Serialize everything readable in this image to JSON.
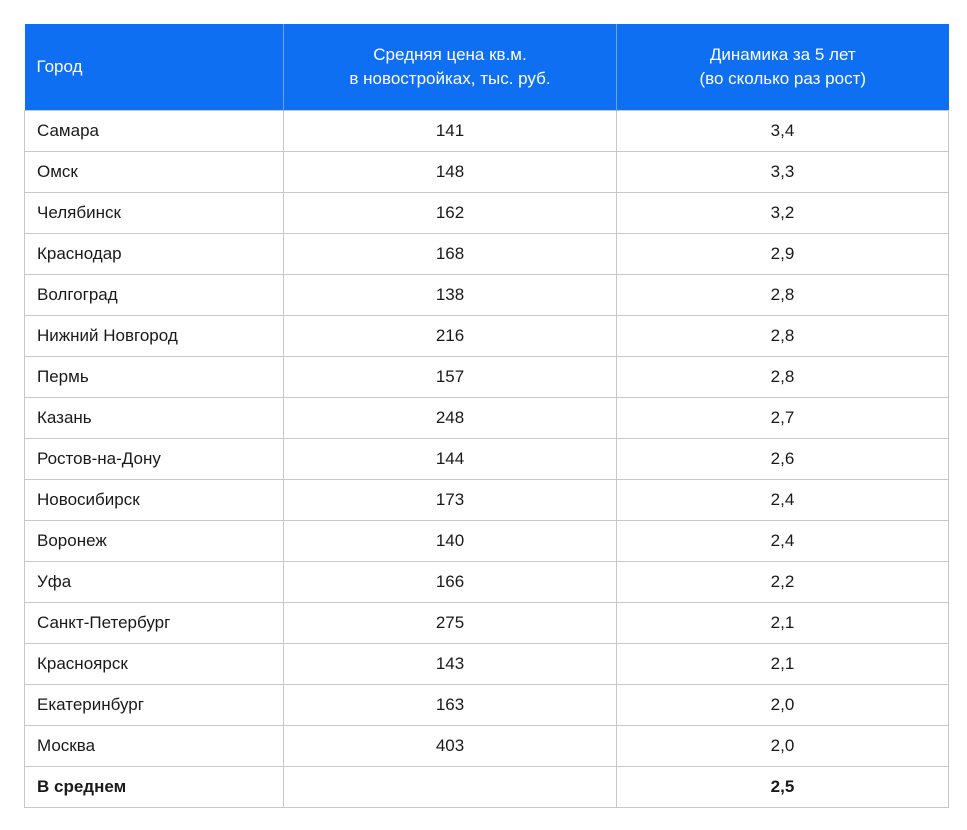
{
  "table": {
    "header": [
      [
        "Город"
      ],
      [
        "Средняя цена кв.м.",
        "в новостройках, тыс. руб."
      ],
      [
        "Динамика за 5 лет",
        "(во сколько раз рост)"
      ]
    ],
    "rows": [
      [
        "Самара",
        "141",
        "3,4"
      ],
      [
        "Омск",
        "148",
        "3,3"
      ],
      [
        "Челябинск",
        "162",
        "3,2"
      ],
      [
        "Краснодар",
        "168",
        "2,9"
      ],
      [
        "Волгоград",
        "138",
        "2,8"
      ],
      [
        "Нижний Новгород",
        "216",
        "2,8"
      ],
      [
        "Пермь",
        "157",
        "2,8"
      ],
      [
        "Казань",
        "248",
        "2,7"
      ],
      [
        "Ростов-на-Дону",
        "144",
        "2,6"
      ],
      [
        "Новосибирск",
        "173",
        "2,4"
      ],
      [
        "Воронеж",
        "140",
        "2,4"
      ],
      [
        "Уфа",
        "166",
        "2,2"
      ],
      [
        "Санкт-Петербург",
        "275",
        "2,1"
      ],
      [
        "Красноярск",
        "143",
        "2,1"
      ],
      [
        "Екатеринбург",
        "163",
        "2,0"
      ],
      [
        "Москва",
        "403",
        "2,0"
      ]
    ],
    "footer": {
      "label": "В среднем",
      "value": "2,5"
    }
  }
}
